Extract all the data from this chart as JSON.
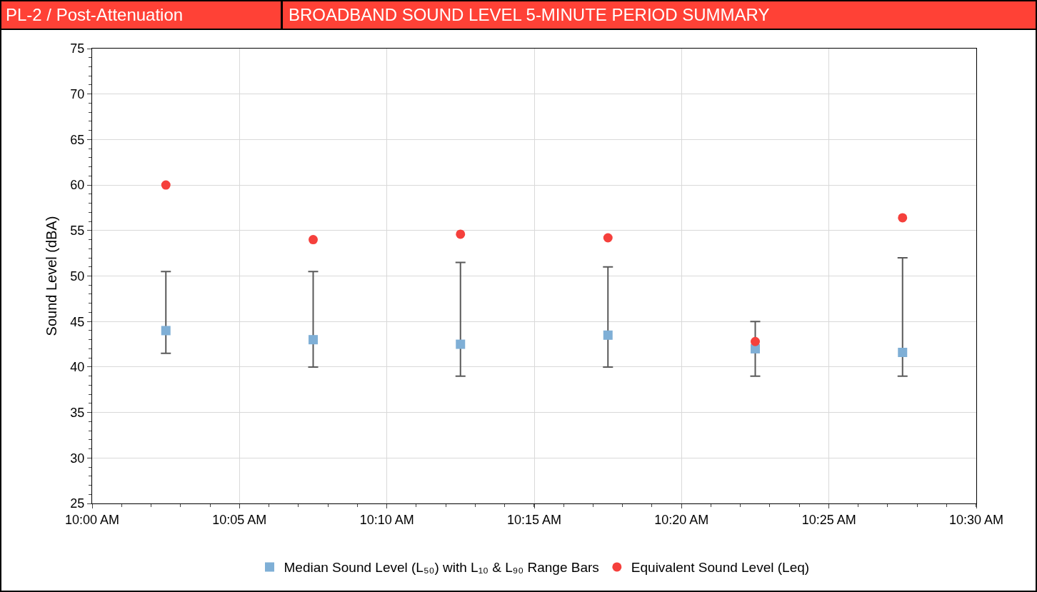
{
  "chart_data": {
    "type": "scatter",
    "title": "BROADBAND SOUND LEVEL 5-MINUTE PERIOD SUMMARY",
    "subtitle": "PL-2 / Post-Attenuation",
    "ylabel": "Sound Level (dBA)",
    "x": [
      10.0417,
      10.125,
      10.2083,
      10.2917,
      10.375,
      10.4583
    ],
    "series": [
      {
        "name": "Median Sound Level (L₅₀) with L₁₀ & L₉₀ Range Bars",
        "color": "#7fafd6",
        "marker": "square",
        "values": [
          44.0,
          43.0,
          42.5,
          43.5,
          42.0,
          41.6
        ],
        "errors": [
          [
            41.5,
            50.5
          ],
          [
            40,
            50.5
          ],
          [
            39,
            51.5
          ],
          [
            40,
            51
          ],
          [
            39,
            45
          ],
          [
            39,
            52
          ]
        ]
      },
      {
        "name": "Equivalent Sound Level (Leq)",
        "color": "#f5403c",
        "marker": "circle",
        "values": [
          60.0,
          54.0,
          54.6,
          54.2,
          42.8,
          56.4
        ]
      }
    ],
    "xlim": [
      10,
      10.5
    ],
    "xticks": [
      {
        "value": 10,
        "label": "10:00 AM"
      },
      {
        "value": 10.0833,
        "label": "10:05 AM"
      },
      {
        "value": 10.1667,
        "label": "10:10 AM"
      },
      {
        "value": 10.25,
        "label": "10:15 AM"
      },
      {
        "value": 10.3333,
        "label": "10:20 AM"
      },
      {
        "value": 10.4167,
        "label": "10:25 AM"
      },
      {
        "value": 10.5,
        "label": "10:30 AM"
      }
    ],
    "ylim": [
      25,
      75
    ],
    "yticks": [
      25,
      30,
      35,
      40,
      45,
      50,
      55,
      60,
      65,
      70,
      75
    ],
    "grid": true,
    "legend": "bottom"
  }
}
